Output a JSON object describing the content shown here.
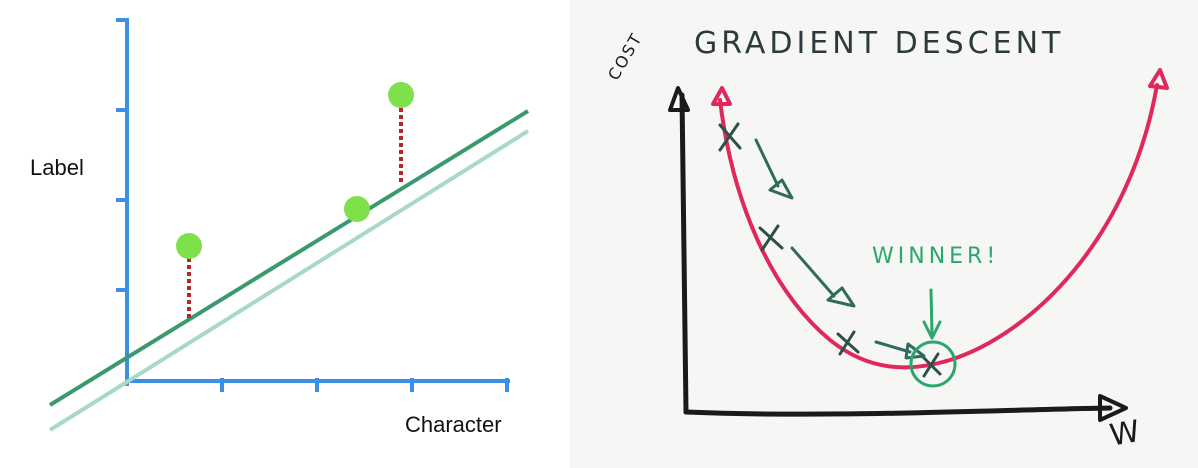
{
  "left_panel": {
    "y_axis_label": "Label",
    "x_axis_label": "Character",
    "colors": {
      "axis": "#3b8ee6",
      "fit_line": "#3a9a6e",
      "alt_line": "#a8d8c8",
      "point": "#7ee04a",
      "residual": "#b02a2a"
    }
  },
  "right_panel": {
    "title": "GRADIENT DESCENT",
    "y_axis_label": "COST",
    "x_axis_label": "W",
    "annotation": "WINNER!",
    "colors": {
      "axes": "#1a1a1a",
      "curve": "#e0285a",
      "steps": "#2f6a5c",
      "winner": "#2aa86a",
      "title": "#2b3a3a"
    }
  }
}
